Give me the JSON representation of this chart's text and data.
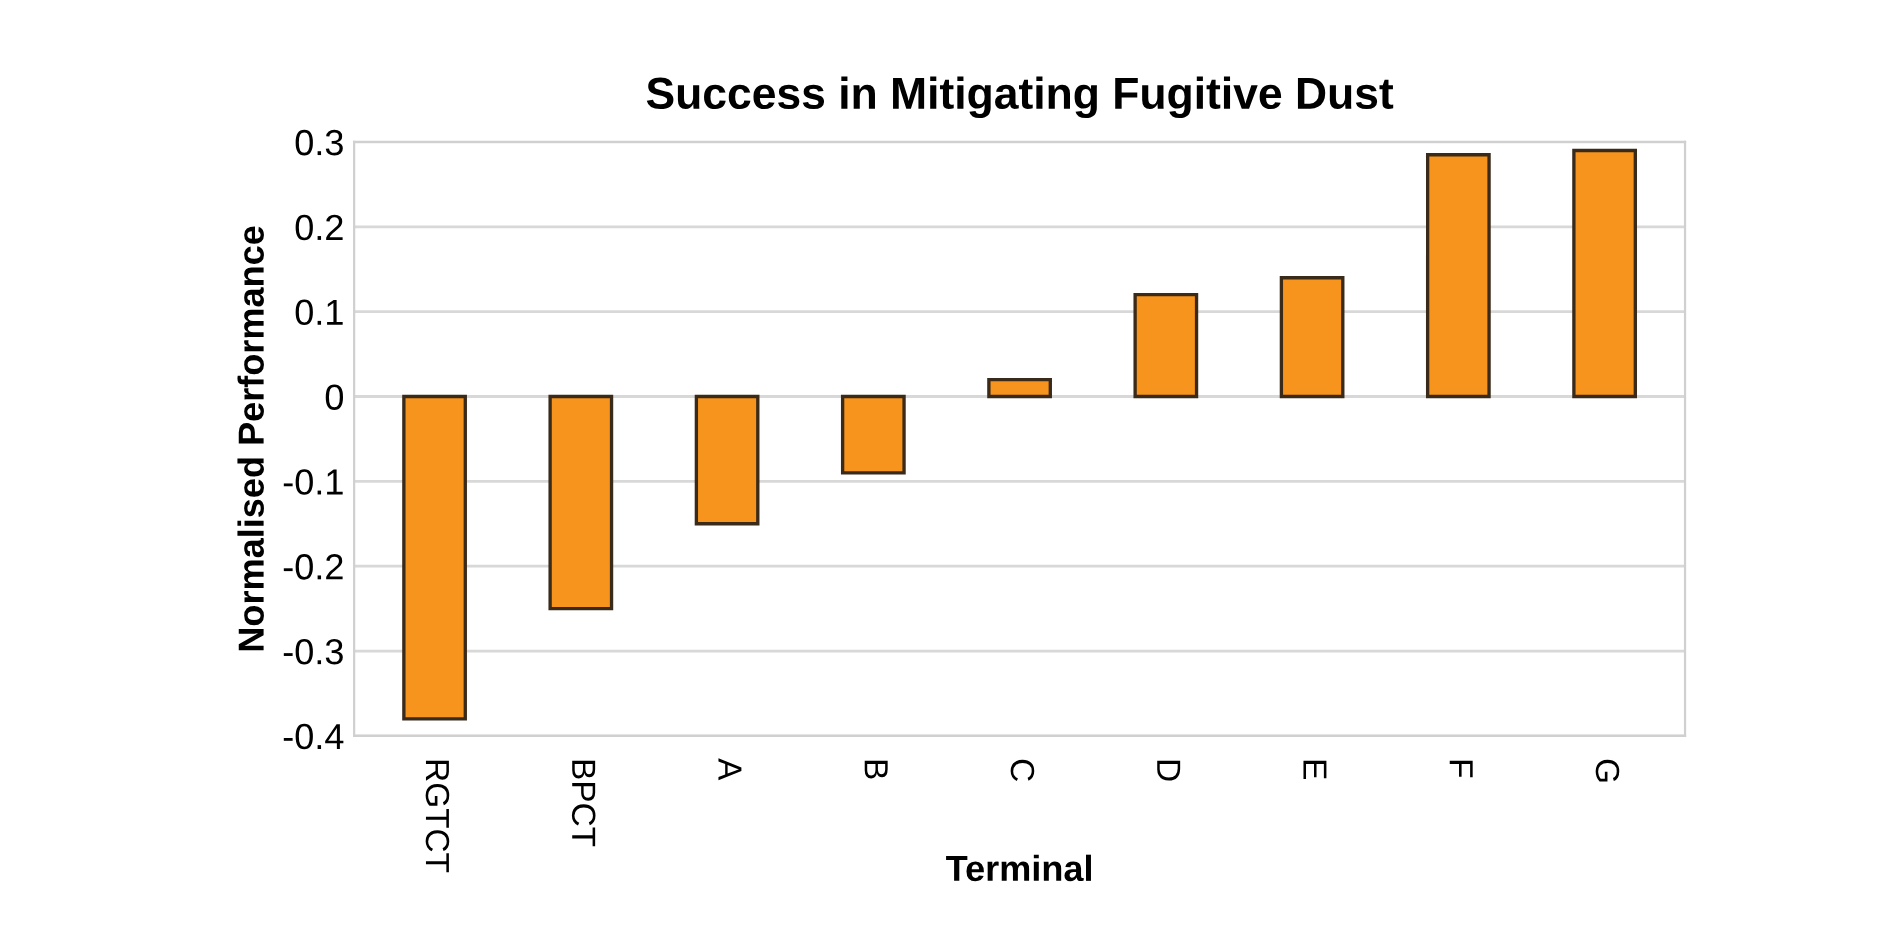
{
  "chart_data": {
    "type": "bar",
    "title": "Success in Mitigating Fugitive Dust",
    "xlabel": "Terminal",
    "ylabel": "Normalised Performance",
    "categories": [
      "RGTCT",
      "BPCT",
      "A",
      "B",
      "C",
      "D",
      "E",
      "F",
      "G"
    ],
    "values": [
      -0.38,
      -0.25,
      -0.15,
      -0.09,
      0.02,
      0.12,
      0.14,
      0.285,
      0.29
    ],
    "color": "#f7941d",
    "ylim": [
      -0.4,
      0.3
    ],
    "yticks": [
      -0.4,
      -0.3,
      -0.2,
      -0.1,
      0,
      0.1,
      0.2,
      0.3
    ],
    "grid": "y"
  }
}
